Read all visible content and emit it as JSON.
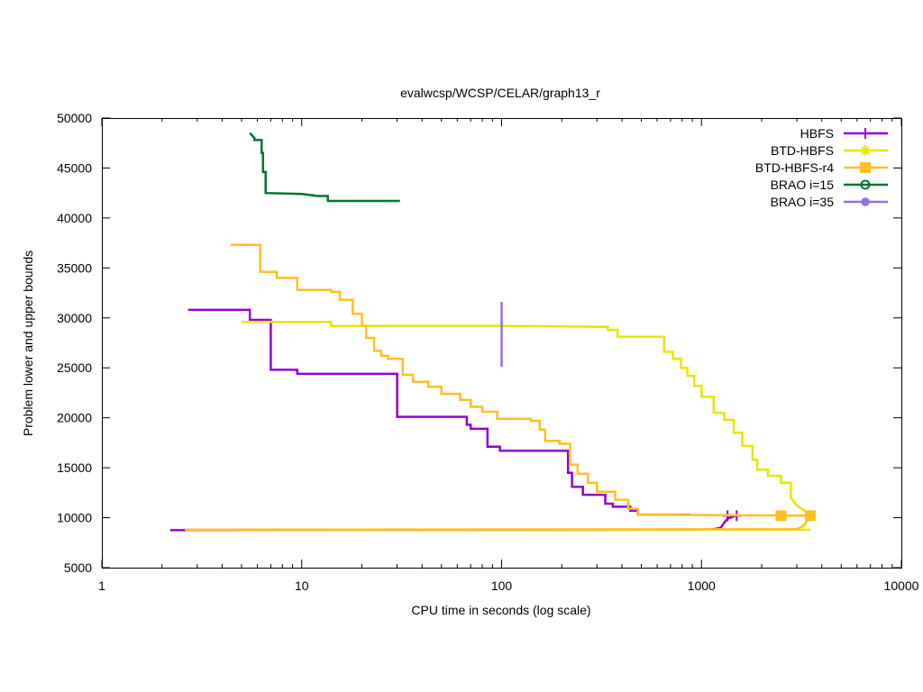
{
  "chart_data": {
    "type": "line",
    "title": "evalwcsp/WCSP/CELAR/graph13_r",
    "xlabel": "CPU time in seconds (log scale)",
    "ylabel": "Problem lower and upper bounds",
    "x_scale": "log",
    "xlim": [
      1,
      10000
    ],
    "ylim": [
      5000,
      50000
    ],
    "x_ticks": [
      1,
      10,
      100,
      1000,
      10000
    ],
    "x_tick_labels": [
      "1",
      "10",
      "100",
      "1000",
      "10000"
    ],
    "y_ticks": [
      5000,
      10000,
      15000,
      20000,
      25000,
      30000,
      35000,
      40000,
      45000,
      50000
    ],
    "y_tick_labels": [
      "5000",
      "10000",
      "15000",
      "20000",
      "25000",
      "30000",
      "35000",
      "40000",
      "45000",
      "50000"
    ],
    "grid": false,
    "legend_position": "top-right",
    "series": [
      {
        "name": "HBFS",
        "color": "#9400d3",
        "marker": "plus",
        "upper": [
          [
            2.7,
            30800
          ],
          [
            5.5,
            30800
          ],
          [
            5.5,
            29800
          ],
          [
            7.0,
            29800
          ],
          [
            7.0,
            24800
          ],
          [
            9.5,
            24800
          ],
          [
            9.5,
            24400
          ],
          [
            30,
            24400
          ],
          [
            30,
            20100
          ],
          [
            67,
            20100
          ],
          [
            67,
            19300
          ],
          [
            70,
            19300
          ],
          [
            70,
            18900
          ],
          [
            85,
            18900
          ],
          [
            85,
            17100
          ],
          [
            98,
            17100
          ],
          [
            98,
            16700
          ],
          [
            215,
            16700
          ],
          [
            215,
            14500
          ],
          [
            225,
            14500
          ],
          [
            225,
            13100
          ],
          [
            255,
            13100
          ],
          [
            255,
            12300
          ],
          [
            330,
            12300
          ],
          [
            330,
            11400
          ],
          [
            360,
            11400
          ],
          [
            360,
            11100
          ],
          [
            440,
            11100
          ],
          [
            440,
            10700
          ],
          [
            480,
            10700
          ],
          [
            480,
            10300
          ],
          [
            880,
            10300
          ]
        ],
        "lower": [
          [
            2.2,
            8750
          ],
          [
            2.6,
            8750
          ],
          [
            2.6,
            8780
          ],
          [
            1000,
            8800
          ],
          [
            1150,
            8850
          ],
          [
            1250,
            9000
          ],
          [
            1300,
            9500
          ],
          [
            1350,
            9900
          ],
          [
            1500,
            10250
          ]
        ],
        "markers": [
          [
            1350,
            10200
          ],
          [
            1500,
            10200
          ]
        ]
      },
      {
        "name": "BTD-HBFS",
        "color": "#e6e600",
        "marker": "star",
        "upper": [
          [
            5.0,
            29600
          ],
          [
            14,
            29600
          ],
          [
            14,
            29200
          ],
          [
            100,
            29200
          ],
          [
            340,
            29100
          ],
          [
            340,
            28800
          ],
          [
            380,
            28800
          ],
          [
            380,
            28100
          ],
          [
            650,
            28100
          ],
          [
            650,
            26600
          ],
          [
            720,
            26600
          ],
          [
            720,
            25900
          ],
          [
            790,
            25900
          ],
          [
            790,
            25000
          ],
          [
            850,
            25000
          ],
          [
            850,
            24200
          ],
          [
            920,
            24200
          ],
          [
            920,
            23200
          ],
          [
            1000,
            23200
          ],
          [
            1000,
            22100
          ],
          [
            1150,
            22100
          ],
          [
            1150,
            20500
          ],
          [
            1300,
            20500
          ],
          [
            1300,
            19800
          ],
          [
            1450,
            19800
          ],
          [
            1450,
            18500
          ],
          [
            1600,
            18500
          ],
          [
            1600,
            17200
          ],
          [
            1800,
            17200
          ],
          [
            1800,
            15800
          ],
          [
            1900,
            15800
          ],
          [
            1900,
            14800
          ],
          [
            2150,
            14800
          ],
          [
            2150,
            14200
          ],
          [
            2500,
            14200
          ],
          [
            2500,
            13500
          ],
          [
            2800,
            13500
          ],
          [
            2800,
            12000
          ],
          [
            3000,
            11200
          ],
          [
            3300,
            10700
          ],
          [
            3500,
            10300
          ]
        ],
        "lower": [
          [
            5.0,
            8800
          ],
          [
            3000,
            8800
          ],
          [
            3500,
            8800
          ]
        ],
        "markers": []
      },
      {
        "name": "BTD-HBFS-r4",
        "color": "#ffc020",
        "marker": "square",
        "upper": [
          [
            4.4,
            37300
          ],
          [
            6.2,
            37300
          ],
          [
            6.2,
            34600
          ],
          [
            7.5,
            34600
          ],
          [
            7.5,
            34000
          ],
          [
            9.5,
            34000
          ],
          [
            9.5,
            32800
          ],
          [
            14,
            32800
          ],
          [
            14,
            32600
          ],
          [
            15.5,
            32600
          ],
          [
            15.5,
            31800
          ],
          [
            18,
            31800
          ],
          [
            18,
            30400
          ],
          [
            20,
            30400
          ],
          [
            20,
            29200
          ],
          [
            21,
            29200
          ],
          [
            21,
            28000
          ],
          [
            23,
            28000
          ],
          [
            23,
            26700
          ],
          [
            25,
            26700
          ],
          [
            25,
            26200
          ],
          [
            27,
            26200
          ],
          [
            27,
            25900
          ],
          [
            32,
            25900
          ],
          [
            32,
            24300
          ],
          [
            36,
            24300
          ],
          [
            36,
            23600
          ],
          [
            43,
            23600
          ],
          [
            43,
            23100
          ],
          [
            50,
            23100
          ],
          [
            50,
            22400
          ],
          [
            62,
            22400
          ],
          [
            62,
            21800
          ],
          [
            70,
            21800
          ],
          [
            70,
            21100
          ],
          [
            80,
            21100
          ],
          [
            80,
            20600
          ],
          [
            95,
            20600
          ],
          [
            95,
            19900
          ],
          [
            140,
            19900
          ],
          [
            140,
            19700
          ],
          [
            155,
            19700
          ],
          [
            155,
            18800
          ],
          [
            165,
            18800
          ],
          [
            165,
            17700
          ],
          [
            195,
            17700
          ],
          [
            195,
            17400
          ],
          [
            220,
            17400
          ],
          [
            220,
            15300
          ],
          [
            240,
            15300
          ],
          [
            240,
            14400
          ],
          [
            270,
            14400
          ],
          [
            270,
            13500
          ],
          [
            300,
            13500
          ],
          [
            300,
            12600
          ],
          [
            370,
            12600
          ],
          [
            370,
            11800
          ],
          [
            430,
            11800
          ],
          [
            430,
            10900
          ],
          [
            480,
            10900
          ],
          [
            480,
            10300
          ],
          [
            3500,
            10200
          ]
        ],
        "lower": [
          [
            2.6,
            8800
          ],
          [
            3000,
            8850
          ],
          [
            3250,
            9200
          ],
          [
            3500,
            10200
          ]
        ],
        "markers": [
          [
            2500,
            10200
          ],
          [
            3500,
            10200
          ]
        ]
      },
      {
        "name": "BRAO i=15",
        "color": "#007432",
        "marker": "circle-open",
        "upper": [
          [
            5.5,
            48500
          ],
          [
            5.8,
            48000
          ],
          [
            5.8,
            47800
          ],
          [
            6.3,
            47800
          ],
          [
            6.3,
            46500
          ],
          [
            6.4,
            46500
          ],
          [
            6.4,
            44600
          ],
          [
            6.6,
            44600
          ],
          [
            6.6,
            42500
          ],
          [
            10,
            42400
          ],
          [
            12,
            42200
          ],
          [
            13.5,
            42200
          ],
          [
            13.5,
            41700
          ],
          [
            31,
            41700
          ]
        ],
        "lower": [],
        "markers": []
      },
      {
        "name": "BRAO i=35",
        "color": "#9370db",
        "marker": "circle-filled",
        "upper": [
          [
            100,
            31600
          ],
          [
            100,
            25100
          ]
        ],
        "lower": [],
        "markers": []
      }
    ]
  }
}
